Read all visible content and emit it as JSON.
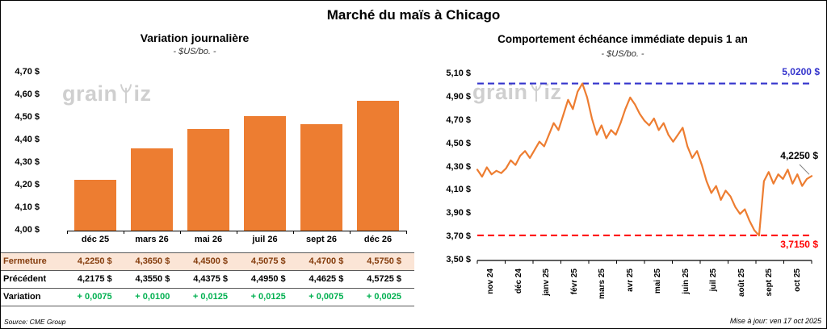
{
  "page": {
    "title": "Marché du maïs à Chicago",
    "source": "Source: CME Group",
    "updated": "Mise à jour: ven 17 oct 2025",
    "watermark": {
      "left": "grain",
      "right": "iz",
      "icon": "wheat-sprout"
    }
  },
  "colors": {
    "bar": "#ED7D31",
    "line": "#ED7D31",
    "max_line": "#3333CC",
    "min_line": "#FF0000",
    "variation_green": "#00B050",
    "fermeture_text": "#843C0C",
    "fermeture_bg": "#FBE5D6"
  },
  "table": {
    "rows": [
      {
        "key": "fermeture",
        "label": "Fermeture",
        "values": [
          "4,2250 $",
          "4,3650 $",
          "4,4500 $",
          "4,5075 $",
          "4,4700 $",
          "4,5750 $"
        ]
      },
      {
        "key": "precedent",
        "label": "Précédent",
        "values": [
          "4,2175 $",
          "4,3550 $",
          "4,4375 $",
          "4,4950 $",
          "4,4625 $",
          "4,5725 $"
        ]
      },
      {
        "key": "variation",
        "label": "Variation",
        "values": [
          "+ 0,0075",
          "+ 0,0100",
          "+ 0,0125",
          "+ 0,0125",
          "+ 0,0075",
          "+ 0,0025"
        ]
      }
    ]
  },
  "chart_data": [
    {
      "type": "bar",
      "title": "Variation journalière",
      "subtitle": "- $US/bo. -",
      "categories": [
        "déc 25",
        "mars 26",
        "mai 26",
        "juil 26",
        "sept 26",
        "déc 26"
      ],
      "values": [
        4.225,
        4.365,
        4.45,
        4.5075,
        4.47,
        4.575
      ],
      "ylim": [
        4.0,
        4.7
      ],
      "ytick_labels": [
        "4,00 $",
        "4,10 $",
        "4,20 $",
        "4,30 $",
        "4,40 $",
        "4,50 $",
        "4,60 $",
        "4,70 $"
      ],
      "bar_color": "#ED7D31",
      "grid": false,
      "legend": "none"
    },
    {
      "type": "line",
      "title": "Comportement échéance immédiate depuis 1 an",
      "subtitle": "- $US/bo. -",
      "x_labels": [
        "nov 24",
        "déc 24",
        "janv 25",
        "févr 25",
        "mars 25",
        "avr 25",
        "mai 25",
        "juin 25",
        "juil 25",
        "août 25",
        "sept 25",
        "oct 25"
      ],
      "ylim": [
        3.5,
        5.1
      ],
      "ytick_labels": [
        "3,50 $",
        "3,70 $",
        "3,90 $",
        "4,10 $",
        "4,30 $",
        "4,50 $",
        "4,70 $",
        "4,90 $",
        "5,10 $"
      ],
      "line_color": "#ED7D31",
      "max_line": {
        "value": 5.02,
        "label": "5,0200 $",
        "color": "#3333CC"
      },
      "min_line": {
        "value": 3.715,
        "label": "3,7150 $",
        "color": "#FF0000"
      },
      "last_point": {
        "value": 4.225,
        "label": "4,2250 $"
      },
      "grid": false,
      "legend": "none",
      "values": [
        4.28,
        4.22,
        4.3,
        4.24,
        4.27,
        4.25,
        4.29,
        4.36,
        4.32,
        4.4,
        4.44,
        4.38,
        4.45,
        4.52,
        4.48,
        4.58,
        4.68,
        4.62,
        4.75,
        4.88,
        4.8,
        4.95,
        5.02,
        4.9,
        4.72,
        4.58,
        4.66,
        4.55,
        4.62,
        4.58,
        4.68,
        4.8,
        4.9,
        4.84,
        4.76,
        4.7,
        4.66,
        4.72,
        4.62,
        4.68,
        4.58,
        4.52,
        4.58,
        4.64,
        4.48,
        4.38,
        4.44,
        4.32,
        4.18,
        4.08,
        4.14,
        4.02,
        4.1,
        4.05,
        3.96,
        3.9,
        3.94,
        3.84,
        3.76,
        3.715,
        4.18,
        4.26,
        4.16,
        4.24,
        4.2,
        4.28,
        4.16,
        4.24,
        4.14,
        4.2,
        4.225
      ]
    }
  ]
}
